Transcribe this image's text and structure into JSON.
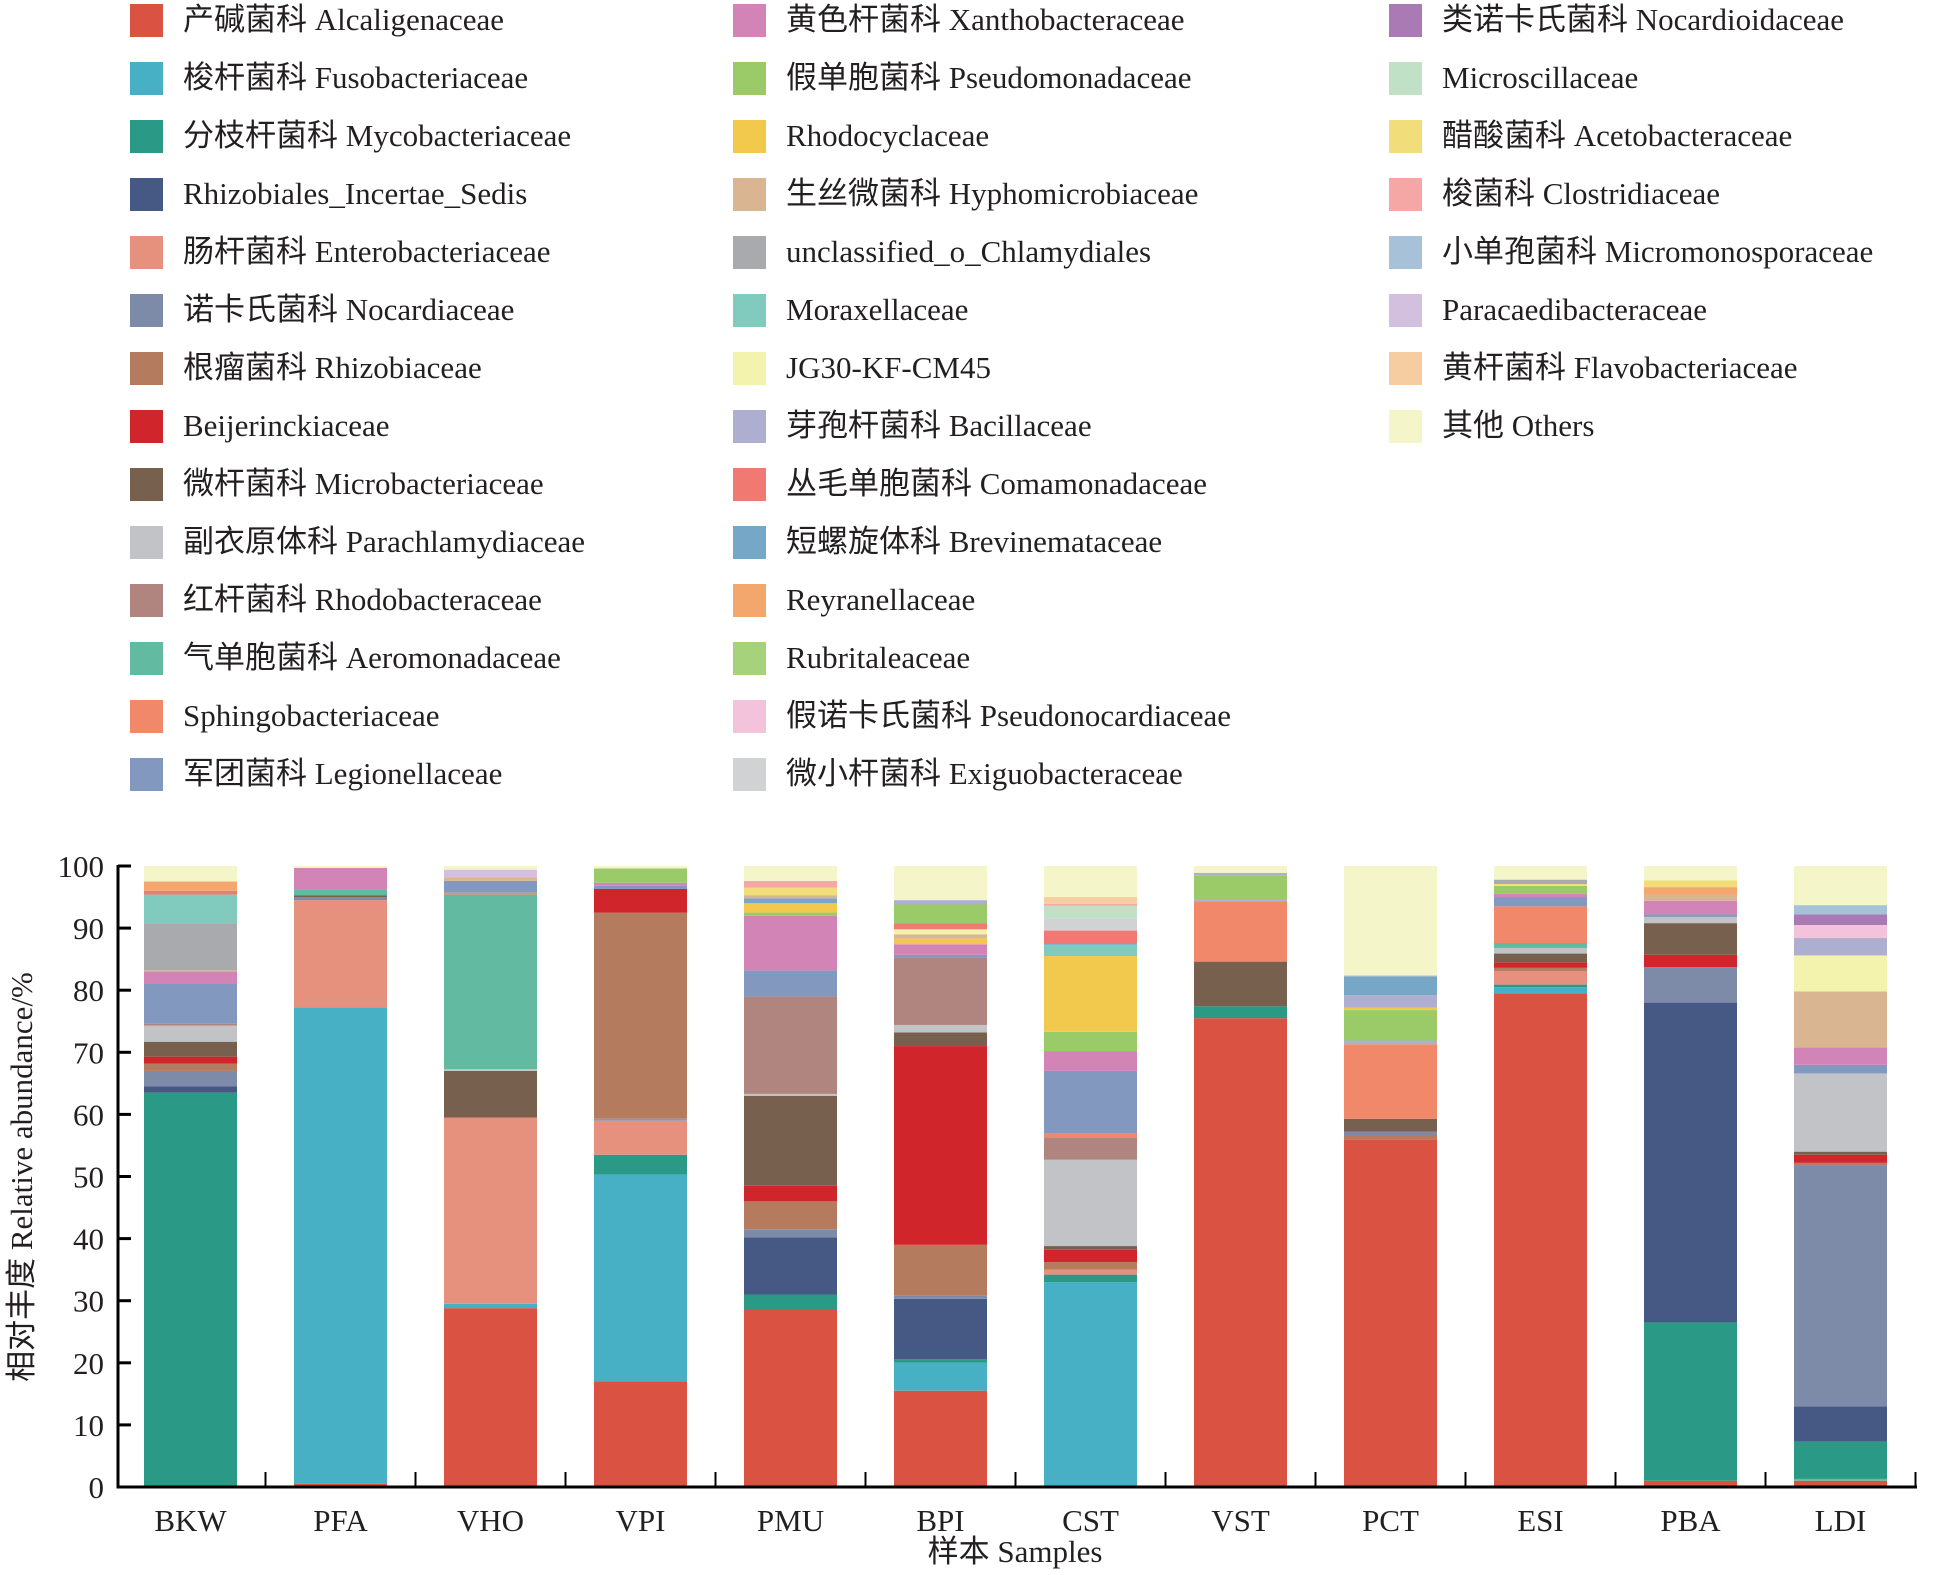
{
  "chart_data": {
    "type": "bar",
    "stacked": true,
    "title": "",
    "xlabel": "样本 Samples",
    "ylabel": "相对丰度 Relative abundance/%",
    "ylim": [
      0,
      100
    ],
    "yticks": [
      "0",
      "10",
      "20",
      "30",
      "40",
      "50",
      "60",
      "70",
      "80",
      "90",
      "100"
    ],
    "grid": false,
    "legend_position": "top",
    "categories": [
      "BKW",
      "PFA",
      "VHO",
      "VPI",
      "PMU",
      "BPI",
      "CST",
      "VST",
      "PCT",
      "ESI",
      "PBA",
      "LDI"
    ],
    "families": [
      {
        "name": "产碱菌科 Alcaligenaceae",
        "color": "#D95242"
      },
      {
        "name": "梭杆菌科 Fusobacteriaceae",
        "color": "#48B0C4"
      },
      {
        "name": "分枝杆菌科 Mycobacteriaceae",
        "color": "#2A9A86"
      },
      {
        "name": "Rhizobiales_Incertae_Sedis",
        "color": "#465985"
      },
      {
        "name": "肠杆菌科 Enterobacteriaceae",
        "color": "#E6907E"
      },
      {
        "name": "诺卡氏菌科 Nocardiaceae",
        "color": "#7D8BA9"
      },
      {
        "name": "根瘤菌科 Rhizobiaceae",
        "color": "#B47B5E"
      },
      {
        "name": "Beijerinckiaceae",
        "color": "#D0252B"
      },
      {
        "name": "微杆菌科 Microbacteriaceae",
        "color": "#78604F"
      },
      {
        "name": "副衣原体科 Parachlamydiaceae",
        "color": "#C2C3C7"
      },
      {
        "name": "红杆菌科 Rhodobacteraceae",
        "color": "#B08580"
      },
      {
        "name": "气单胞菌科 Aeromonadaceae",
        "color": "#62BAA0"
      },
      {
        "name": "Sphingobacteriaceae",
        "color": "#F2886A"
      },
      {
        "name": "军团菌科 Legionellaceae",
        "color": "#8298BE"
      },
      {
        "name": "黄色杆菌科 Xanthobacteraceae",
        "color": "#D384B7"
      },
      {
        "name": "假单胞菌科 Pseudomonadaceae",
        "color": "#9ACB68"
      },
      {
        "name": "Rhodocyclaceae",
        "color": "#F2C94C"
      },
      {
        "name": "生丝微菌科 Hyphomicrobiaceae",
        "color": "#D9B591"
      },
      {
        "name": "unclassified_o_Chlamydiales",
        "color": "#A9AAAE"
      },
      {
        "name": "Moraxellaceae",
        "color": "#80CBBD"
      },
      {
        "name": "JG30-KF-CM45",
        "color": "#F4F3AE"
      },
      {
        "name": "芽孢杆菌科 Bacillaceae",
        "color": "#ADAED0"
      },
      {
        "name": "丛毛单胞菌科 Comamonadaceae",
        "color": "#F07A72"
      },
      {
        "name": "短螺旋体科 Brevinemataceae",
        "color": "#76A7C6"
      },
      {
        "name": "Reyranellaceae",
        "color": "#F3A76C"
      },
      {
        "name": "Rubritaleaceae",
        "color": "#A5D27A"
      },
      {
        "name": "假诺卡氏菌科 Pseudonocardiaceae",
        "color": "#F3C3DB"
      },
      {
        "name": "微小杆菌科 Exiguobacteraceae",
        "color": "#D1D2D4"
      },
      {
        "name": "类诺卡氏菌科 Nocardioidaceae",
        "color": "#A97AB3"
      },
      {
        "name": "Microscillaceae",
        "color": "#C0E1C5"
      },
      {
        "name": "醋酸菌科 Acetobacteraceae",
        "color": "#F1DE7A"
      },
      {
        "name": "梭菌科 Clostridiaceae",
        "color": "#F4A7A5"
      },
      {
        "name": "小单孢菌科 Micromonosporaceae",
        "color": "#A6C1D8"
      },
      {
        "name": "Paracaedibacteraceae",
        "color": "#D3C0DE"
      },
      {
        "name": "黄杆菌科 Flavobacteriaceae",
        "color": "#F6CDA0"
      },
      {
        "name": "其他 Others",
        "color": "#F4F5C8"
      }
    ],
    "series": [
      {
        "sample": "BKW",
        "segments": [
          [
            2,
            63.5
          ],
          [
            3,
            1.0
          ],
          [
            5,
            2.5
          ],
          [
            6,
            1.2
          ],
          [
            7,
            1.1
          ],
          [
            8,
            2.4
          ],
          [
            9,
            2.6
          ],
          [
            10,
            0.3
          ],
          [
            13,
            6.4
          ],
          [
            14,
            2.0
          ],
          [
            17,
            0.2
          ],
          [
            18,
            7.6
          ],
          [
            19,
            4.6
          ],
          [
            22,
            0.6
          ],
          [
            24,
            1.5
          ],
          [
            35,
            2.5
          ]
        ]
      },
      {
        "sample": "PFA",
        "segments": [
          [
            0,
            0.5
          ],
          [
            1,
            76.7
          ],
          [
            4,
            17.3
          ],
          [
            5,
            0.5
          ],
          [
            8,
            0.3
          ],
          [
            11,
            0.9
          ],
          [
            14,
            3.5
          ],
          [
            35,
            0.3
          ]
        ]
      },
      {
        "sample": "VHO",
        "segments": [
          [
            0,
            28.8
          ],
          [
            1,
            0.7
          ],
          [
            4,
            30.0
          ],
          [
            8,
            7.5
          ],
          [
            9,
            0.3
          ],
          [
            11,
            28.1
          ],
          [
            12,
            0.3
          ],
          [
            13,
            1.9
          ],
          [
            17,
            0.6
          ],
          [
            33,
            1.2
          ],
          [
            35,
            0.6
          ]
        ]
      },
      {
        "sample": "VPI",
        "segments": [
          [
            0,
            17.0
          ],
          [
            1,
            33.3
          ],
          [
            2,
            3.2
          ],
          [
            4,
            5.5
          ],
          [
            13,
            0.3
          ],
          [
            6,
            33.2
          ],
          [
            7,
            3.8
          ],
          [
            13,
            0.5
          ],
          [
            14,
            0.5
          ],
          [
            15,
            2.3
          ],
          [
            35,
            0.4
          ]
        ]
      },
      {
        "sample": "PMU",
        "segments": [
          [
            0,
            28.5
          ],
          [
            2,
            2.5
          ],
          [
            3,
            9.2
          ],
          [
            5,
            1.3
          ],
          [
            6,
            4.5
          ],
          [
            7,
            2.5
          ],
          [
            8,
            14.5
          ],
          [
            9,
            0.3
          ],
          [
            10,
            15.7
          ],
          [
            13,
            4.2
          ],
          [
            14,
            8.8
          ],
          [
            15,
            0.5
          ],
          [
            16,
            1.5
          ],
          [
            23,
            0.8
          ],
          [
            17,
            0.5
          ],
          [
            30,
            1.2
          ],
          [
            31,
            1.1
          ],
          [
            35,
            2.4
          ]
        ]
      },
      {
        "sample": "BPI",
        "segments": [
          [
            0,
            15.5
          ],
          [
            1,
            4.5
          ],
          [
            2,
            0.6
          ],
          [
            3,
            9.7
          ],
          [
            5,
            0.5
          ],
          [
            6,
            8.2
          ],
          [
            7,
            32.0
          ],
          [
            8,
            2.2
          ],
          [
            9,
            1.2
          ],
          [
            10,
            10.8
          ],
          [
            13,
            0.5
          ],
          [
            14,
            1.7
          ],
          [
            16,
            0.9
          ],
          [
            17,
            0.7
          ],
          [
            20,
            0.8
          ],
          [
            22,
            1.0
          ],
          [
            15,
            3.0
          ],
          [
            21,
            0.7
          ],
          [
            35,
            5.5
          ]
        ]
      },
      {
        "sample": "CST",
        "segments": [
          [
            1,
            33.0
          ],
          [
            2,
            1.2
          ],
          [
            4,
            0.8
          ],
          [
            6,
            1.2
          ],
          [
            7,
            2.0
          ],
          [
            8,
            0.6
          ],
          [
            9,
            13.9
          ],
          [
            10,
            3.6
          ],
          [
            12,
            0.7
          ],
          [
            13,
            10.0
          ],
          [
            14,
            3.2
          ],
          [
            15,
            3.1
          ],
          [
            16,
            12.2
          ],
          [
            19,
            1.8
          ],
          [
            23,
            0.3
          ],
          [
            22,
            2.0
          ],
          [
            27,
            2.0
          ],
          [
            29,
            2.0
          ],
          [
            31,
            0.3
          ],
          [
            34,
            1.1
          ],
          [
            35,
            5.0
          ]
        ]
      },
      {
        "sample": "VST",
        "segments": [
          [
            0,
            75.5
          ],
          [
            2,
            1.9
          ],
          [
            8,
            7.2
          ],
          [
            12,
            9.7
          ],
          [
            21,
            0.3
          ],
          [
            15,
            3.9
          ],
          [
            21,
            0.4
          ],
          [
            35,
            1.1
          ]
        ]
      },
      {
        "sample": "PCT",
        "segments": [
          [
            0,
            56.0
          ],
          [
            6,
            0.6
          ],
          [
            5,
            0.6
          ],
          [
            8,
            2.1
          ],
          [
            12,
            12.0
          ],
          [
            21,
            0.6
          ],
          [
            15,
            4.9
          ],
          [
            16,
            0.4
          ],
          [
            21,
            2.0
          ],
          [
            23,
            3.0
          ],
          [
            9,
            0.2
          ],
          [
            35,
            17.6
          ]
        ]
      },
      {
        "sample": "ESI",
        "segments": [
          [
            0,
            79.5
          ],
          [
            1,
            1.0
          ],
          [
            2,
            0.4
          ],
          [
            4,
            2.2
          ],
          [
            6,
            0.5
          ],
          [
            7,
            0.9
          ],
          [
            8,
            1.4
          ],
          [
            9,
            0.9
          ],
          [
            11,
            0.8
          ],
          [
            12,
            5.9
          ],
          [
            13,
            1.5
          ],
          [
            14,
            0.5
          ],
          [
            15,
            1.3
          ],
          [
            30,
            0.3
          ],
          [
            18,
            0.7
          ],
          [
            35,
            2.2
          ]
        ]
      },
      {
        "sample": "PBA",
        "segments": [
          [
            0,
            1.0
          ],
          [
            2,
            25.5
          ],
          [
            3,
            51.5
          ],
          [
            5,
            5.7
          ],
          [
            7,
            2.0
          ],
          [
            8,
            5.1
          ],
          [
            9,
            1.0
          ],
          [
            13,
            0.4
          ],
          [
            14,
            2.2
          ],
          [
            17,
            1.0
          ],
          [
            24,
            1.2
          ],
          [
            30,
            1.1
          ],
          [
            35,
            2.3
          ]
        ]
      },
      {
        "sample": "LDI",
        "segments": [
          [
            0,
            1.0
          ],
          [
            11,
            0.3
          ],
          [
            2,
            6.0
          ],
          [
            3,
            5.7
          ],
          [
            5,
            38.7
          ],
          [
            6,
            0.5
          ],
          [
            7,
            1.3
          ],
          [
            8,
            0.5
          ],
          [
            9,
            12.6
          ],
          [
            13,
            1.4
          ],
          [
            14,
            2.8
          ],
          [
            17,
            9.0
          ],
          [
            20,
            5.8
          ],
          [
            21,
            2.8
          ],
          [
            26,
            2.1
          ],
          [
            28,
            1.7
          ],
          [
            32,
            1.5
          ],
          [
            35,
            6.3
          ]
        ]
      }
    ]
  },
  "legend": {
    "columns": [
      {
        "items": [
          0,
          1,
          2,
          3,
          4,
          5,
          6,
          7,
          8,
          9,
          10,
          11,
          12,
          13
        ]
      },
      {
        "items": [
          14,
          15,
          16,
          17,
          18,
          19,
          20,
          21,
          22,
          23,
          24,
          25,
          26,
          27
        ]
      },
      {
        "items": [
          28,
          29,
          30,
          31,
          32,
          33,
          34,
          35
        ]
      }
    ]
  }
}
